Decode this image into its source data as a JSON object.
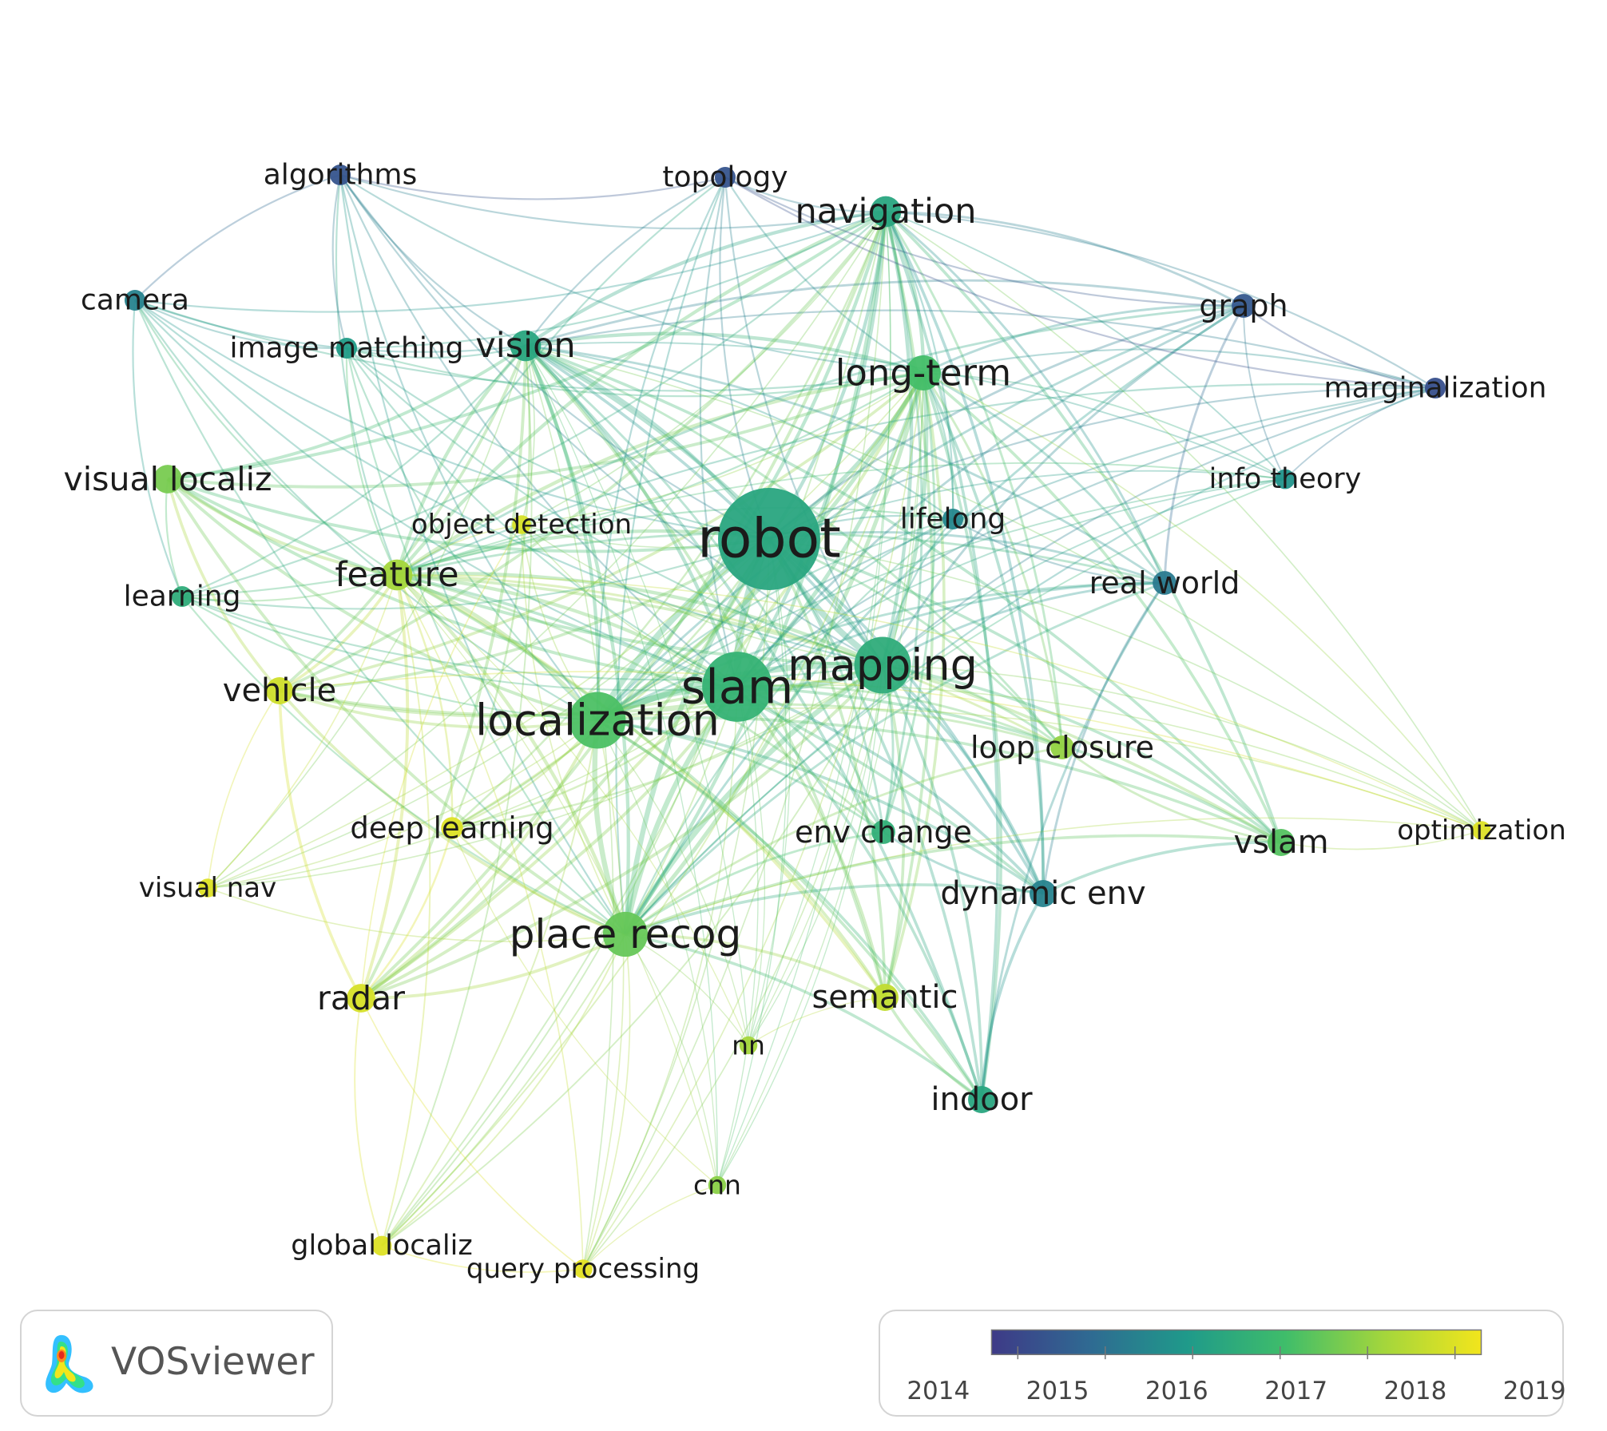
{
  "nodes": [
    {
      "id": "robot",
      "label": "robot",
      "year": 2016.3,
      "weight": 10
    },
    {
      "id": "slam",
      "label": "slam",
      "year": 2016.7,
      "weight": 8
    },
    {
      "id": "mapping",
      "label": "mapping",
      "year": 2016.5,
      "weight": 7
    },
    {
      "id": "localization",
      "label": "localization",
      "year": 2017.2,
      "weight": 7
    },
    {
      "id": "place_recog",
      "label": "place recog",
      "year": 2017.5,
      "weight": 6
    },
    {
      "id": "long_term",
      "label": "long-term",
      "year": 2017.1,
      "weight": 5
    },
    {
      "id": "navigation",
      "label": "navigation",
      "year": 2016.3,
      "weight": 4.5
    },
    {
      "id": "vision",
      "label": "vision",
      "year": 2016.3,
      "weight": 4.5
    },
    {
      "id": "feature",
      "label": "feature",
      "year": 2018.2,
      "weight": 4.5
    },
    {
      "id": "visual_localiz",
      "label": "visual localiz",
      "year": 2017.7,
      "weight": 4.2
    },
    {
      "id": "vehicle",
      "label": "vehicle",
      "year": 2018.8,
      "weight": 4
    },
    {
      "id": "radar",
      "label": "radar",
      "year": 2018.9,
      "weight": 4.2
    },
    {
      "id": "semantic",
      "label": "semantic",
      "year": 2018.6,
      "weight": 4
    },
    {
      "id": "indoor",
      "label": "indoor",
      "year": 2016.3,
      "weight": 4
    },
    {
      "id": "vslam",
      "label": "vslam",
      "year": 2017.3,
      "weight": 4
    },
    {
      "id": "dynamic_env",
      "label": "dynamic env",
      "year": 2015.4,
      "weight": 4
    },
    {
      "id": "loop_closure",
      "label": "loop closure",
      "year": 2018.0,
      "weight": 3.5
    },
    {
      "id": "env_change",
      "label": "env change",
      "year": 2016.6,
      "weight": 3.5
    },
    {
      "id": "deep_learning",
      "label": "deep learning",
      "year": 2019.0,
      "weight": 3.2
    },
    {
      "id": "real_world",
      "label": "real world",
      "year": 2015.2,
      "weight": 3.5
    },
    {
      "id": "graph",
      "label": "graph",
      "year": 2014.4,
      "weight": 3.5
    },
    {
      "id": "marginalization",
      "label": "marginalization",
      "year": 2014.2,
      "weight": 3
    },
    {
      "id": "info_theory",
      "label": "info theory",
      "year": 2015.8,
      "weight": 2.8
    },
    {
      "id": "lifelong",
      "label": "lifelong",
      "year": 2015.5,
      "weight": 3
    },
    {
      "id": "object_detection",
      "label": "object detection",
      "year": 2018.9,
      "weight": 2.6
    },
    {
      "id": "learning",
      "label": "learning",
      "year": 2016.5,
      "weight": 3
    },
    {
      "id": "camera",
      "label": "camera",
      "year": 2015.4,
      "weight": 3
    },
    {
      "id": "image_matching",
      "label": "image matching",
      "year": 2016.0,
      "weight": 3
    },
    {
      "id": "algorithms",
      "label": "algorithms",
      "year": 2014.3,
      "weight": 3
    },
    {
      "id": "topology",
      "label": "topology",
      "year": 2014.3,
      "weight": 3
    },
    {
      "id": "optimization",
      "label": "optimization",
      "year": 2019.0,
      "weight": 2.6
    },
    {
      "id": "visual_nav",
      "label": "visual nav",
      "year": 2019.0,
      "weight": 2.6
    },
    {
      "id": "nn",
      "label": "nn",
      "year": 2018.2,
      "weight": 2.4
    },
    {
      "id": "cnn",
      "label": "cnn",
      "year": 2017.9,
      "weight": 2.4
    },
    {
      "id": "global_localiz",
      "label": "global localiz",
      "year": 2019.0,
      "weight": 2.8
    },
    {
      "id": "query_processing",
      "label": "query processing",
      "year": 2019.1,
      "weight": 2.6
    }
  ],
  "legend": {
    "ticks": [
      "2014",
      "2015",
      "2016",
      "2017",
      "2018",
      "2019"
    ],
    "tick_values": [
      2014,
      2015,
      2016,
      2017,
      2018,
      2019
    ],
    "min": 2013.7,
    "max": 2019.3,
    "colors": [
      "#3e3a87",
      "#2f6a92",
      "#1f9a8a",
      "#3fbd6a",
      "#a3d63c",
      "#f2e51c"
    ]
  },
  "logo": {
    "text": "VOSviewer"
  }
}
